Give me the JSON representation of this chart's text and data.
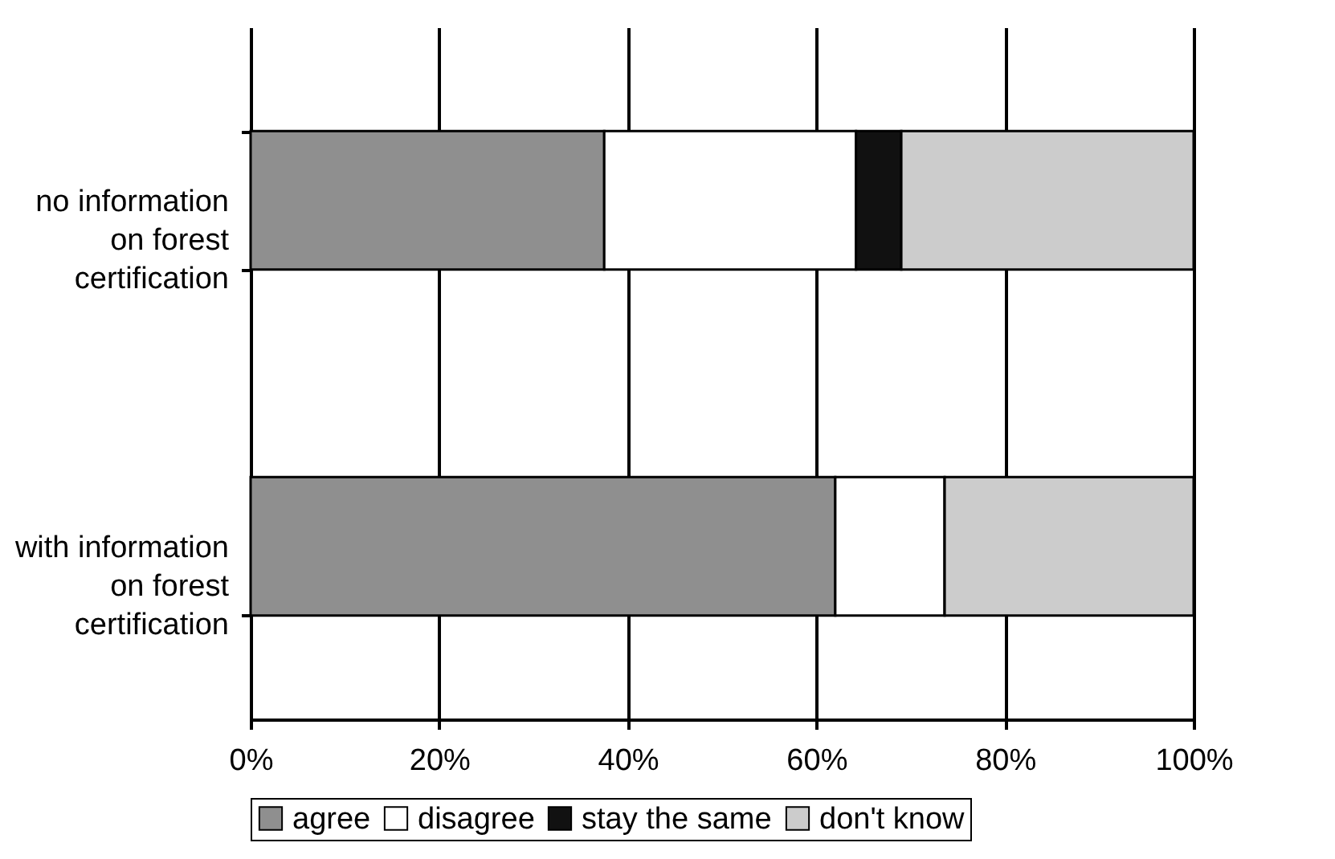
{
  "chart_data": {
    "type": "bar",
    "orientation": "horizontal",
    "stacked": true,
    "categories": [
      "no information on forest certification",
      "with information on forest certification"
    ],
    "series": [
      {
        "name": "agree",
        "color": "#8f8f8f",
        "values": [
          37.5,
          62.0
        ]
      },
      {
        "name": "disagree",
        "color": "#ffffff",
        "values": [
          26.7,
          11.6
        ]
      },
      {
        "name": "stay the same",
        "color": "#111111",
        "values": [
          4.8,
          0
        ]
      },
      {
        "name": "don't know",
        "color": "#cccccc",
        "values": [
          31.0,
          26.4
        ]
      }
    ],
    "xlim": [
      0,
      100
    ],
    "xticks": [
      {
        "value": 0,
        "label": "0%"
      },
      {
        "value": 20,
        "label": "20%"
      },
      {
        "value": 40,
        "label": "40%"
      },
      {
        "value": 60,
        "label": "60%"
      },
      {
        "value": 80,
        "label": "80%"
      },
      {
        "value": 100,
        "label": "100%"
      }
    ],
    "grid": "x",
    "legend": "bottom"
  }
}
